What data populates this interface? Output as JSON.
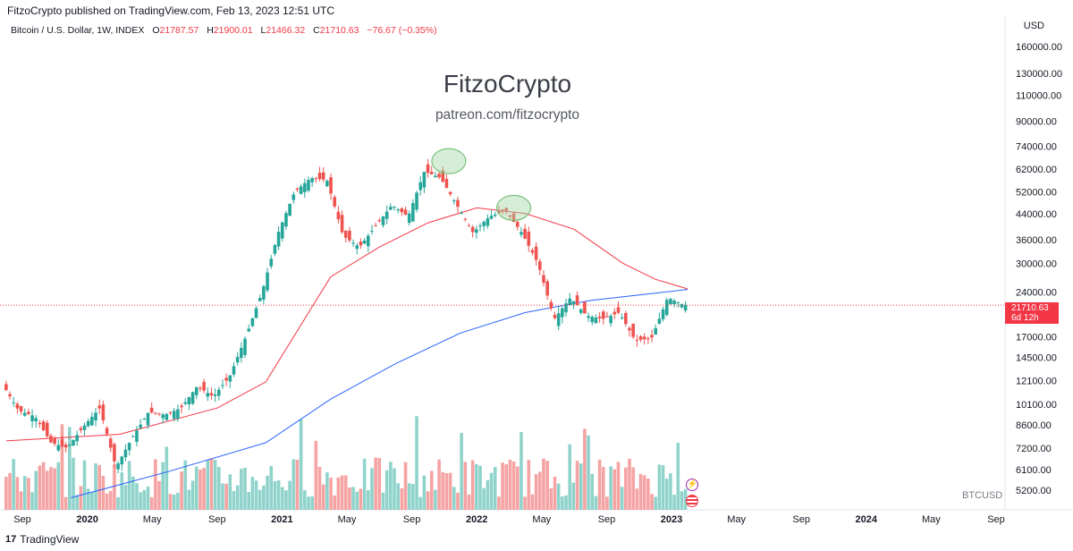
{
  "header": {
    "published_by": "FitzoCrypto published on TradingView.com, Feb 13, 2023 12:51 UTC"
  },
  "symbol": {
    "name": "Bitcoin / U.S. Dollar, 1W, INDEX",
    "open_label": "O",
    "open": "21787.57",
    "high_label": "H",
    "high": "21900.01",
    "low_label": "L",
    "low": "21466.32",
    "close_label": "C",
    "close": "21710.63",
    "change": "−76.67 (−0.35%)"
  },
  "watermark": {
    "title": "FitzoCrypto",
    "subtitle": "patreon.com/fitzocrypto"
  },
  "price_axis": {
    "currency": "USD"
  },
  "last_price": {
    "value": "21710.63",
    "countdown": "6d 12h"
  },
  "ticker": "BTCUSD",
  "footer": {
    "brand": "TradingView",
    "logo_text": "17"
  },
  "colors": {
    "up": "#26a69a",
    "down": "#ef5350",
    "vol_up": "#8fd3cb",
    "vol_down": "#f5a3a3",
    "ma_red": "#f23645",
    "ma_blue": "#2962ff",
    "highlight": "#a5d6a7"
  },
  "chart_data": {
    "type": "candlestick",
    "timeframe": "1W",
    "scale": "log",
    "ylim": [
      4800,
      180000
    ],
    "y_ticks": [
      160000,
      130000,
      110000,
      90000,
      74000,
      62000,
      52000,
      44000,
      36000,
      30000,
      24000,
      17000,
      14500,
      12100,
      10100,
      8600,
      7200,
      6100,
      5200
    ],
    "y_tick_labels": [
      "160000.00",
      "130000.00",
      "110000.00",
      "90000.00",
      "74000.00",
      "62000.00",
      "52000.00",
      "44000.00",
      "36000.00",
      "30000.00",
      "24000.00",
      "17000.00",
      "14500.00",
      "12100.00",
      "10100.00",
      "8600.00",
      "7200.00",
      "6100.00",
      "5200.00"
    ],
    "x_tick_labels": [
      "Sep",
      "2020",
      "May",
      "Sep",
      "2021",
      "May",
      "Sep",
      "2022",
      "May",
      "Sep",
      "2023",
      "May",
      "Sep",
      "2024",
      "May",
      "Sep"
    ],
    "x_tick_dates": [
      "2019-09",
      "2020-01",
      "2020-05",
      "2020-09",
      "2021-01",
      "2021-05",
      "2021-09",
      "2022-01",
      "2022-05",
      "2022-09",
      "2023-01",
      "2023-05",
      "2023-09",
      "2024-01",
      "2024-05",
      "2024-09"
    ],
    "price_path": [
      [
        "2019-08",
        11800
      ],
      [
        "2019-09",
        9600
      ],
      [
        "2019-10",
        9200
      ],
      [
        "2019-11",
        7500
      ],
      [
        "2019-12",
        7200
      ],
      [
        "2020-01",
        8500
      ],
      [
        "2020-02",
        9800
      ],
      [
        "2020-03",
        6200
      ],
      [
        "2020-04",
        7800
      ],
      [
        "2020-05",
        9500
      ],
      [
        "2020-06",
        9300
      ],
      [
        "2020-07",
        9800
      ],
      [
        "2020-08",
        11600
      ],
      [
        "2020-09",
        10700
      ],
      [
        "2020-10",
        12500
      ],
      [
        "2020-11",
        17000
      ],
      [
        "2020-12",
        24000
      ],
      [
        "2021-01",
        38000
      ],
      [
        "2021-02",
        52000
      ],
      [
        "2021-03",
        58000
      ],
      [
        "2021-04",
        57000
      ],
      [
        "2021-05",
        37000
      ],
      [
        "2021-06",
        34000
      ],
      [
        "2021-07",
        40000
      ],
      [
        "2021-08",
        47000
      ],
      [
        "2021-09",
        43000
      ],
      [
        "2021-10",
        61000
      ],
      [
        "2021-11",
        58000
      ],
      [
        "2021-12",
        47000
      ],
      [
        "2022-01",
        38000
      ],
      [
        "2022-02",
        43000
      ],
      [
        "2022-03",
        45000
      ],
      [
        "2022-04",
        38000
      ],
      [
        "2022-05",
        30000
      ],
      [
        "2022-06",
        19500
      ],
      [
        "2022-07",
        23000
      ],
      [
        "2022-08",
        20000
      ],
      [
        "2022-09",
        19500
      ],
      [
        "2022-10",
        20500
      ],
      [
        "2022-11",
        16500
      ],
      [
        "2022-12",
        16800
      ],
      [
        "2023-01",
        23000
      ],
      [
        "2023-02",
        21710
      ]
    ],
    "ma_red": [
      [
        "2019-08",
        7600
      ],
      [
        "2020-03",
        8000
      ],
      [
        "2020-09",
        9800
      ],
      [
        "2020-12",
        12000
      ],
      [
        "2021-02",
        18000
      ],
      [
        "2021-04",
        27000
      ],
      [
        "2021-07",
        34000
      ],
      [
        "2021-10",
        41000
      ],
      [
        "2022-01",
        46000
      ],
      [
        "2022-04",
        44000
      ],
      [
        "2022-07",
        39000
      ],
      [
        "2022-10",
        30000
      ],
      [
        "2022-12",
        26500
      ],
      [
        "2023-02",
        24600
      ]
    ],
    "ma_blue": [
      [
        "2019-12",
        4900
      ],
      [
        "2020-06",
        6000
      ],
      [
        "2020-12",
        7500
      ],
      [
        "2021-04",
        10500
      ],
      [
        "2021-08",
        13800
      ],
      [
        "2021-12",
        17500
      ],
      [
        "2022-04",
        20500
      ],
      [
        "2022-08",
        22500
      ],
      [
        "2022-12",
        23800
      ],
      [
        "2023-02",
        24500
      ]
    ],
    "highlights": [
      [
        "2021-11",
        66000
      ],
      [
        "2022-03",
        46000
      ]
    ]
  }
}
